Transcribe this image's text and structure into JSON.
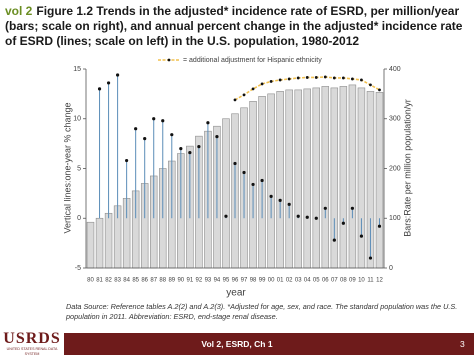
{
  "header": {
    "volume": "vol 2",
    "title": "Figure 1.2  Trends in the adjusted* incidence rate of ESRD, per million/year (bars; scale on right), and annual percent change in the adjusted* incidence rate of ESRD (lines; scale on left) in the U.S. population, 1980-2012"
  },
  "chart_data": {
    "type": "bar",
    "categories": [
      "80",
      "81",
      "82",
      "83",
      "84",
      "85",
      "86",
      "87",
      "88",
      "89",
      "90",
      "91",
      "92",
      "93",
      "94",
      "95",
      "96",
      "97",
      "98",
      "99",
      "00",
      "01",
      "02",
      "03",
      "04",
      "05",
      "06",
      "07",
      "08",
      "09",
      "10",
      "11",
      "12"
    ],
    "series": [
      {
        "type": "bar",
        "axis": "y2",
        "color": "#d9d9d9",
        "values": [
          92,
          100,
          110,
          125,
          140,
          155,
          170,
          185,
          200,
          215,
          230,
          245,
          265,
          275,
          285,
          300,
          310,
          322,
          335,
          345,
          350,
          355,
          358,
          358,
          360,
          362,
          365,
          362,
          365,
          368,
          362,
          355,
          353
        ]
      },
      {
        "type": "stem",
        "axis": "y",
        "color": "#5b8db8",
        "values": [
          null,
          13.0,
          13.6,
          14.4,
          5.8,
          9.0,
          8.0,
          10.0,
          9.8,
          8.4,
          7.0,
          6.6,
          7.2,
          9.6,
          8.2,
          0.2,
          5.5,
          4.6,
          3.4,
          3.8,
          2.2,
          1.8,
          1.4,
          0.2,
          0.1,
          0.0,
          1.0,
          -2.2,
          -0.5,
          1.0,
          -1.8,
          -4.0,
          -0.8
        ]
      },
      {
        "type": "line",
        "axis": "y2",
        "name": "= additional adjustment for Hispanic ethnicity",
        "color": "#f2c14e",
        "values": [
          null,
          null,
          null,
          null,
          null,
          null,
          null,
          null,
          null,
          null,
          null,
          null,
          null,
          null,
          null,
          null,
          338,
          348,
          360,
          370,
          375,
          378,
          380,
          382,
          383,
          383,
          384,
          382,
          382,
          380,
          378,
          368,
          358
        ]
      }
    ],
    "ylim": [
      -5,
      15
    ],
    "yticks": [
      -5,
      0,
      5,
      10,
      15
    ],
    "y2lim": [
      0,
      400
    ],
    "y2ticks": [
      0,
      100,
      200,
      300,
      400
    ],
    "xlabel": "year",
    "ylabel": "Vertical lines:one-year % change",
    "y2label": "Bars:Rate per million population/yr",
    "legend": "top",
    "grid": false
  },
  "footnote": "Data Source: Reference tables A.2(2) and A.2(3). *Adjusted for age, sex, and race. The standard population was the U.S. population in 2011. Abbreviation: ESRD, end-stage renal disease.",
  "footer": {
    "logo": "USRDS",
    "logo_subtitle": "UNITED STATES RENAL DATA SYSTEM",
    "section": "Vol 2, ESRD, Ch 1",
    "page": "3"
  }
}
